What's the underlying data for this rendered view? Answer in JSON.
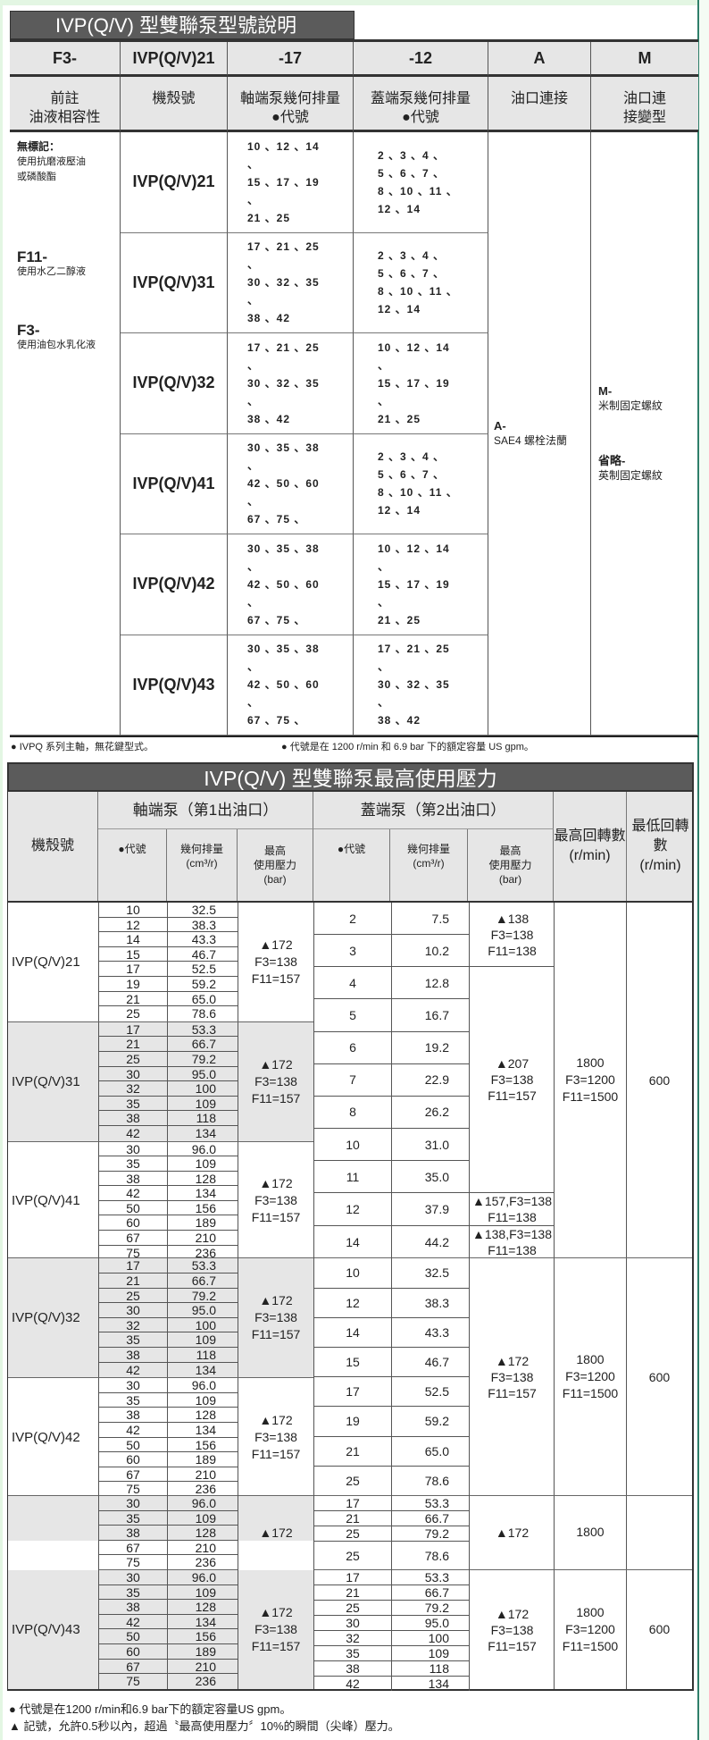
{
  "colors": {
    "title_bar": "#5b5b5b",
    "header_bg": "#e6e6e6",
    "shade": "#e6e6e6",
    "page_edge": "#2f7f6a"
  },
  "model_code": {
    "title": "IVP(Q/V) 型雙聯泵型號說明",
    "header": [
      "F3-",
      "IVP(Q/V)21",
      "-17",
      "-12",
      "A",
      "M"
    ],
    "subheader": [
      [
        "前註",
        "油液相容性"
      ],
      [
        "機殼號"
      ],
      [
        "軸端泵幾何排量",
        "●代號"
      ],
      [
        "蓋端泵幾何排量",
        "●代號"
      ],
      [
        "油口連接"
      ],
      [
        "油口連",
        "接變型"
      ]
    ],
    "compat": [
      {
        "code": "無標記：",
        "desc": [
          "使用抗磨液壓油",
          "或磷酸酯"
        ]
      },
      {
        "code": "F11-",
        "desc": [
          "使用水乙二醇液"
        ]
      },
      {
        "code": "F3-",
        "desc": [
          "使用油包水乳化液"
        ]
      }
    ],
    "rows": [
      {
        "model": "IVP(Q/V)21",
        "shaft": [
          "10 、12 、14 、",
          "15 、17 、19 、",
          "21 、25"
        ],
        "cover": [
          "2 、3 、4 、",
          "5 、6 、7 、",
          "8 、10 、11 、",
          "12 、14"
        ]
      },
      {
        "model": "IVP(Q/V)31",
        "shaft": [
          "17 、21 、25 、",
          "30 、32 、35 、",
          "38 、42"
        ],
        "cover": [
          "2 、3 、4 、",
          "5 、6 、7 、",
          "8 、10 、11 、",
          "12 、14"
        ]
      },
      {
        "model": "IVP(Q/V)32",
        "shaft": [
          "17 、21 、25 、",
          "30 、32 、35 、",
          "38 、42"
        ],
        "cover": [
          "10 、12 、14 、",
          "15 、17 、19 、",
          "21 、25"
        ]
      },
      {
        "model": "IVP(Q/V)41",
        "shaft": [
          "30 、35 、38 、",
          "42 、50 、60 、",
          "67 、75 、"
        ],
        "cover": [
          "2 、3 、4 、",
          "5 、6 、7 、",
          "8 、10 、11 、",
          "12 、14"
        ]
      },
      {
        "model": "IVP(Q/V)42",
        "shaft": [
          "30 、35 、38 、",
          "42 、50 、60 、",
          "67 、75 、"
        ],
        "cover": [
          "10 、12 、14 、",
          "15 、17 、19 、",
          "21 、25"
        ]
      },
      {
        "model": "IVP(Q/V)43",
        "shaft": [
          "30 、35 、38 、",
          "42 、50 、60 、",
          "67 、75 、"
        ],
        "cover": [
          "17 、21 、25 、",
          "30 、32 、35 、",
          "38 、42"
        ]
      }
    ],
    "port": {
      "code": "A-",
      "desc": "SAE4 螺栓法蘭"
    },
    "variant": [
      {
        "code": "M-",
        "desc": "米制固定螺紋"
      },
      {
        "code": "省略-",
        "desc": "英制固定螺紋"
      }
    ],
    "notes": [
      "● IVPQ 系列主軸，無花鍵型式。",
      "● 代號是在 1200 r/min 和 6.9 bar 下的額定容量 US gpm。"
    ]
  },
  "pressure": {
    "title": "IVP(Q/V) 型雙聯泵最高使用壓力",
    "headers": {
      "model": "機殼號",
      "shaft_group": "軸端泵（第1出油口）",
      "cover_group": "蓋端泵（第2出油口）",
      "code": "●代號",
      "disp": [
        "幾何排量",
        "(cm³/r)"
      ],
      "maxp": [
        "最高",
        "使用壓力",
        "(bar)"
      ],
      "max_rpm": [
        "最高回轉數",
        "(r/min)"
      ],
      "min_rpm": [
        "最低回轉數",
        "(r/min)"
      ]
    },
    "groups": [
      {
        "models": [
          {
            "name": "IVP(Q/V)21",
            "shade": false,
            "rows": [
              [
                "10",
                "32.5"
              ],
              [
                "12",
                "38.3"
              ],
              [
                "14",
                "43.3"
              ],
              [
                "15",
                "46.7"
              ],
              [
                "17",
                "52.5"
              ],
              [
                "19",
                "59.2"
              ],
              [
                "21",
                "65.0"
              ],
              [
                "25",
                "78.6"
              ]
            ],
            "pressure": [
              "▲172",
              "F3=138",
              "F11=157"
            ]
          },
          {
            "name": "IVP(Q/V)31",
            "shade": true,
            "rows": [
              [
                "17",
                "53.3"
              ],
              [
                "21",
                "66.7"
              ],
              [
                "25",
                "79.2"
              ],
              [
                "30",
                "95.0"
              ],
              [
                "32",
                "100"
              ],
              [
                "35",
                "109"
              ],
              [
                "38",
                "118"
              ],
              [
                "42",
                "134"
              ]
            ],
            "pressure": [
              "▲172",
              "F3=138",
              "F11=157"
            ]
          },
          {
            "name": "IVP(Q/V)41",
            "shade": false,
            "rows": [
              [
                "30",
                "96.0"
              ],
              [
                "35",
                "109"
              ],
              [
                "38",
                "128"
              ],
              [
                "42",
                "134"
              ],
              [
                "50",
                "156"
              ],
              [
                "60",
                "189"
              ],
              [
                "67",
                "210"
              ],
              [
                "75",
                "236"
              ]
            ],
            "pressure": [
              "▲172",
              "F3=138",
              "F11=157"
            ]
          }
        ],
        "cover": {
          "cells": [
            [
              "2",
              "7.5",
              1
            ],
            [
              "3",
              "10.2",
              1
            ],
            [
              "4",
              "12.8",
              1
            ],
            [
              "5",
              "16.7",
              1
            ],
            [
              "6",
              "19.2",
              1
            ],
            [
              "7",
              "22.9",
              1
            ],
            [
              "8",
              "26.2",
              1
            ],
            [
              "10",
              "31.0",
              1
            ],
            [
              "11",
              "35.0",
              1
            ],
            [
              "12",
              "37.9",
              1
            ],
            [
              "14",
              "44.2",
              1
            ]
          ],
          "pressure": [
            {
              "span": 2,
              "text": [
                "▲138",
                "F3=138",
                "F11=138"
              ]
            },
            {
              "span": 7,
              "text": [
                "▲207",
                "F3=138",
                "F11=157"
              ]
            },
            {
              "span": 1,
              "text": [
                "▲157,F3=138",
                "F11=138"
              ]
            },
            {
              "span": 1,
              "text": [
                "▲138,F3=138",
                "F11=138"
              ]
            }
          ]
        },
        "max_rpm": [
          "1800",
          "F3=1200",
          "F11=1500"
        ],
        "min_rpm": "600"
      },
      {
        "models": [
          {
            "name": "IVP(Q/V)32",
            "shade": true,
            "rows": [
              [
                "17",
                "53.3"
              ],
              [
                "21",
                "66.7"
              ],
              [
                "25",
                "79.2"
              ],
              [
                "30",
                "95.0"
              ],
              [
                "32",
                "100"
              ],
              [
                "35",
                "109"
              ],
              [
                "38",
                "118"
              ],
              [
                "42",
                "134"
              ]
            ],
            "pressure": [
              "▲172",
              "F3=138",
              "F11=157"
            ]
          },
          {
            "name": "IVP(Q/V)42",
            "shade": false,
            "rows": [
              [
                "30",
                "96.0"
              ],
              [
                "35",
                "109"
              ],
              [
                "38",
                "128"
              ],
              [
                "42",
                "134"
              ],
              [
                "50",
                "156"
              ],
              [
                "60",
                "189"
              ],
              [
                "67",
                "210"
              ],
              [
                "75",
                "236"
              ]
            ],
            "pressure": [
              "▲172",
              "F3=138",
              "F11=157"
            ]
          }
        ],
        "cover": {
          "cells": [
            [
              "10",
              "32.5",
              1
            ],
            [
              "12",
              "38.3",
              1
            ],
            [
              "14",
              "43.3",
              1
            ],
            [
              "15",
              "46.7",
              1
            ],
            [
              "17",
              "52.5",
              1
            ],
            [
              "19",
              "59.2",
              1
            ],
            [
              "21",
              "65.0",
              1
            ],
            [
              "25",
              "78.6",
              1
            ]
          ],
          "pressure": [
            {
              "span": 8,
              "text": [
                "▲172",
                "F3=138",
                "F11=157"
              ]
            }
          ]
        },
        "max_rpm": [
          "1800",
          "F3=1200",
          "F11=1500"
        ],
        "min_rpm": "600"
      },
      {
        "models": [
          {
            "name": "",
            "shade": "partial",
            "shade_rows": 3,
            "rows": [
              [
                "30",
                "96.0"
              ],
              [
                "35",
                "109"
              ],
              [
                "38",
                "128"
              ],
              [
                "67",
                "210"
              ],
              [
                "75",
                "236"
              ]
            ],
            "pressure": [
              "▲172"
            ]
          }
        ],
        "cover": {
          "cells": [
            [
              "17",
              "53.3",
              1
            ],
            [
              "21",
              "66.7",
              1
            ],
            [
              "25",
              "79.2",
              1
            ],
            [
              "25",
              "78.6",
              2
            ]
          ],
          "pressure": [
            {
              "span": 4,
              "text": [
                "▲172"
              ]
            }
          ]
        },
        "max_rpm": [
          "1800"
        ],
        "min_rpm": ""
      },
      {
        "models": [
          {
            "name": "IVP(Q/V)43",
            "shade": true,
            "rows": [
              [
                "30",
                "96.0"
              ],
              [
                "35",
                "109"
              ],
              [
                "38",
                "128"
              ],
              [
                "42",
                "134"
              ],
              [
                "50",
                "156"
              ],
              [
                "60",
                "189"
              ],
              [
                "67",
                "210"
              ],
              [
                "75",
                "236"
              ]
            ],
            "pressure": [
              "▲172",
              "F3=138",
              "F11=157"
            ]
          }
        ],
        "cover": {
          "cells": [
            [
              "17",
              "53.3",
              1
            ],
            [
              "21",
              "66.7",
              1
            ],
            [
              "25",
              "79.2",
              1
            ],
            [
              "30",
              "95.0",
              1
            ],
            [
              "32",
              "100",
              1
            ],
            [
              "35",
              "109",
              1
            ],
            [
              "38",
              "118",
              1
            ],
            [
              "42",
              "134",
              1
            ]
          ],
          "pressure": [
            {
              "span": 8,
              "text": [
                "▲172",
                "F3=138",
                "F11=157"
              ]
            }
          ]
        },
        "max_rpm": [
          "1800",
          "F3=1200",
          "F11=1500"
        ],
        "min_rpm": "600"
      }
    ],
    "notes": [
      "●  代號是在1200 r/min和6.9 bar下的額定容量US gpm。",
      "▲  記號，允許0.5秒以內，超過〝最高使用壓力〞10%的瞬間（尖峰）壓力。"
    ]
  }
}
